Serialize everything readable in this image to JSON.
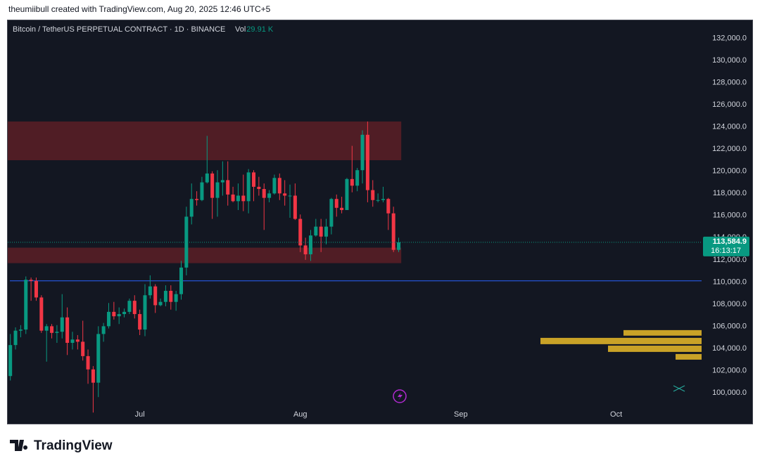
{
  "header": "theumiibull created with TradingView.com, Aug 20, 2025 12:46 UTC+5",
  "brand": "TradingView",
  "chart_data": {
    "type": "candlestick",
    "title": "Bitcoin / TetherUS PERPETUAL CONTRACT · 1D · BINANCE",
    "volume_label": "Vol",
    "volume_value": "29.91 K",
    "x": [
      0,
      1,
      2,
      3,
      4,
      5,
      6,
      7,
      8,
      9,
      10,
      11,
      12,
      13,
      14,
      15,
      16,
      17,
      18,
      19,
      20,
      21,
      22,
      23,
      24,
      25,
      26,
      27,
      28,
      29,
      30,
      31,
      32,
      33,
      34,
      35,
      36,
      37,
      38,
      39,
      40,
      41,
      42,
      43,
      44,
      45,
      46,
      47,
      48,
      49,
      50,
      51,
      52,
      53,
      54,
      55,
      56,
      57,
      58,
      59,
      60,
      61,
      62,
      63,
      64,
      65,
      66,
      67,
      68,
      69,
      70,
      71,
      72,
      73,
      74,
      75
    ],
    "open": [
      101500,
      104300,
      105600,
      105700,
      110200,
      110100,
      108600,
      105600,
      106000,
      105400,
      105500,
      106800,
      104500,
      104800,
      104600,
      103300,
      102100,
      100900,
      105300,
      106000,
      107300,
      106900,
      107100,
      107300,
      108300,
      107100,
      105700,
      108800,
      109600,
      107900,
      108200,
      109200,
      108200,
      108900,
      111300,
      115900,
      117500,
      117400,
      119000,
      119800,
      117600,
      119000,
      119200,
      117900,
      117300,
      117800,
      117300,
      119900,
      118600,
      118400,
      117600,
      118000,
      119400,
      118000,
      117800,
      117800,
      115700,
      113300,
      112500,
      114200,
      115000,
      114100,
      115000,
      117500,
      116700,
      116500,
      119300,
      118700,
      120100,
      123300,
      118300,
      117400,
      117400,
      117500,
      116200,
      112900
    ],
    "high": [
      105300,
      105900,
      106100,
      110500,
      110400,
      110400,
      108800,
      106200,
      106200,
      106100,
      108900,
      107700,
      105500,
      105200,
      106500,
      103900,
      102400,
      106000,
      106300,
      108100,
      108200,
      107700,
      107600,
      108500,
      108800,
      107500,
      109800,
      110600,
      109800,
      108500,
      109700,
      109700,
      109200,
      111900,
      116800,
      118900,
      118200,
      119500,
      123200,
      120000,
      120100,
      120900,
      120900,
      118600,
      118900,
      119700,
      120200,
      120100,
      119500,
      118900,
      118300,
      119700,
      119800,
      119200,
      118800,
      118900,
      116100,
      114000,
      114700,
      115700,
      115700,
      115700,
      117600,
      117900,
      117700,
      119400,
      122300,
      120300,
      123700,
      124500,
      119200,
      118000,
      118600,
      117600,
      116800,
      114000
    ],
    "low": [
      101100,
      103900,
      105000,
      105300,
      108300,
      108300,
      105400,
      102800,
      104900,
      104500,
      104900,
      103400,
      103900,
      103900,
      102900,
      100800,
      98200,
      99600,
      104600,
      105800,
      106600,
      106200,
      106800,
      107100,
      106700,
      105200,
      105100,
      108500,
      107200,
      107800,
      107800,
      107500,
      107400,
      108400,
      110600,
      115200,
      116900,
      117300,
      118900,
      115700,
      115900,
      117800,
      116900,
      117200,
      116500,
      116400,
      116200,
      117300,
      117800,
      114700,
      117200,
      117900,
      117400,
      116900,
      115800,
      115600,
      112700,
      112000,
      111900,
      114100,
      112700,
      113400,
      114300,
      115900,
      116200,
      116500,
      118100,
      118200,
      118900,
      117200,
      116800,
      117200,
      117200,
      114700,
      112700,
      112700
    ],
    "close": [
      104300,
      105600,
      105700,
      110200,
      110100,
      108600,
      105600,
      106000,
      105400,
      105500,
      106800,
      104500,
      104800,
      104600,
      103300,
      102100,
      100900,
      105300,
      106000,
      107300,
      106900,
      107100,
      107300,
      108300,
      107100,
      105700,
      108800,
      109600,
      107900,
      108200,
      109200,
      108200,
      108900,
      111300,
      115900,
      117500,
      117400,
      119000,
      119800,
      117600,
      119000,
      119200,
      117900,
      117300,
      117800,
      117300,
      119900,
      118600,
      118400,
      117600,
      118000,
      119400,
      118000,
      117800,
      117800,
      115700,
      113300,
      112500,
      114200,
      115000,
      114100,
      115000,
      117500,
      116700,
      116500,
      119300,
      118700,
      120100,
      123300,
      118300,
      117400,
      117400,
      117500,
      116200,
      112900,
      113584.9
    ],
    "up_color": "#089981",
    "down_color": "#f23645",
    "xlim": [
      -0.5,
      133.5
    ],
    "xticks": [
      {
        "value": 25,
        "label": "Jul"
      },
      {
        "value": 56,
        "label": "Aug"
      },
      {
        "value": 87,
        "label": "Sep"
      },
      {
        "value": 117,
        "label": "Oct"
      }
    ],
    "ylim": [
      97200,
      133700
    ],
    "yticks": [
      {
        "value": 100000,
        "label": "100,000.0"
      },
      {
        "value": 102000,
        "label": "102,000.0"
      },
      {
        "value": 104000,
        "label": "104,000.0"
      },
      {
        "value": 106000,
        "label": "106,000.0"
      },
      {
        "value": 108000,
        "label": "108,000.0"
      },
      {
        "value": 110000,
        "label": "110,000.0"
      },
      {
        "value": 112000,
        "label": "112,000.0"
      },
      {
        "value": 114000,
        "label": "114,000.0"
      },
      {
        "value": 116000,
        "label": "116,000.0"
      },
      {
        "value": 118000,
        "label": "118,000.0"
      },
      {
        "value": 120000,
        "label": "120,000.0"
      },
      {
        "value": 122000,
        "label": "122,000.0"
      },
      {
        "value": 124000,
        "label": "124,000.0"
      },
      {
        "value": 126000,
        "label": "126,000.0"
      },
      {
        "value": 128000,
        "label": "128,000.0"
      },
      {
        "value": 130000,
        "label": "130,000.0"
      },
      {
        "value": 132000,
        "label": "132,000.0"
      }
    ],
    "grid": false,
    "zones": [
      {
        "low": 121000,
        "high": 124500,
        "color": "#5c1f26"
      },
      {
        "low": 111700,
        "high": 113100,
        "color": "#5c1f26"
      }
    ],
    "hline": {
      "value": 110100,
      "color": "#2962ff"
    },
    "last_price": {
      "value": 113584.9,
      "label": "113,584.9",
      "countdown": "16:13:17"
    },
    "volume_profile": {
      "color": "#c9a227",
      "bars": [
        {
          "low": 105150,
          "high": 105650,
          "size": 111
        },
        {
          "low": 104380,
          "high": 104950,
          "size": 229
        },
        {
          "low": 103680,
          "high": 104250,
          "size": 133
        },
        {
          "low": 102980,
          "high": 103490,
          "size": 37
        }
      ]
    }
  }
}
